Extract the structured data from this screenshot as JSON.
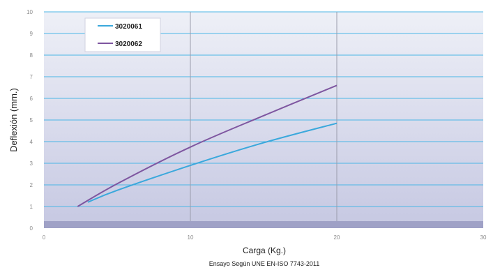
{
  "chart_data": {
    "type": "line",
    "title": "",
    "xlabel": "Carga (Kg.)",
    "ylabel": "Deflexión (mm.)",
    "subtitle": "Ensayo Según UNE EN-ISO 7743-2011",
    "xlim": [
      0,
      30
    ],
    "ylim": [
      0,
      10
    ],
    "x_ticks": [
      "0",
      "10",
      "20",
      "30"
    ],
    "y_ticks": [
      "0",
      "1",
      "2",
      "3",
      "4",
      "5",
      "6",
      "7",
      "8",
      "9",
      "10"
    ],
    "grid": true,
    "legend_position": "top-left",
    "series": [
      {
        "name": "3020061",
        "color": "#3aa8dc",
        "x": [
          3,
          5,
          10,
          15,
          20
        ],
        "y": [
          1.2,
          1.75,
          2.9,
          3.95,
          4.85
        ]
      },
      {
        "name": "3020062",
        "color": "#7e56a0",
        "x": [
          2.3,
          5,
          10,
          15,
          20
        ],
        "y": [
          1.0,
          2.05,
          3.75,
          5.2,
          6.6
        ]
      }
    ]
  }
}
